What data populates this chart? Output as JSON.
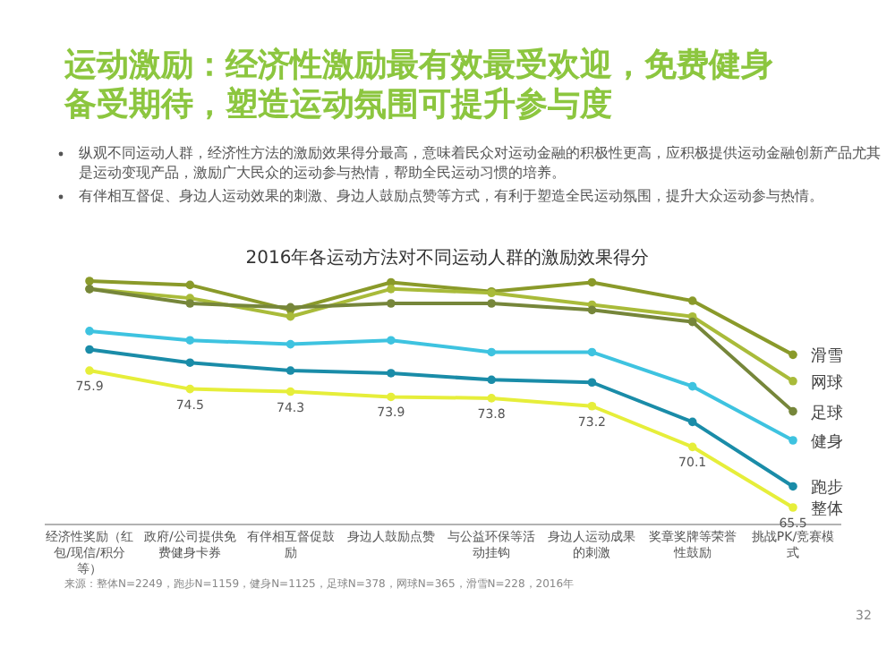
{
  "chart_data": {
    "type": "line",
    "title": "运动激励：经济性激励最有效最受欢迎，免费健身备受期待，塑造运动氛围可提升参与度",
    "subtitle": "2016年各运动方法对不同运动人群的激励效果得分",
    "annotations": [
      "纵观不同运动人群，经济性方法的激励效果得分最高，意味着民众对运动金融的积极性更高，应积极提供运动金融创新产品尤其是运动变现产品，激励广大民众的运动参与热情，帮助全民运动习惯的培养。",
      "有伴相互督促、身边人运动效果的刺激、身边人鼓励点赞等方式，有利于塑造全民运动氛围，提升大众运动参与热情。",
      "来源：整体N=2249，跑步N=1159，健身N=1125，足球N=378，网球N=365，滑雪N=228，2016年",
      "32"
    ],
    "categories": [
      "经济性奖励（红包/现信/积分等）",
      "政府/公司提供免费健身卡券",
      "有伴相互督促鼓励",
      "身边人鼓励点赞",
      "与公益环保等活动挂钩",
      "身边人运动成果的刺激",
      "奖章奖牌等荣誉性鼓励",
      "挑战PK/竞赛模式"
    ],
    "marker": "circle",
    "series": [
      {
        "name": "滑雪",
        "color": "#8a9a2a",
        "values": [
          82.7,
          82.4,
          80.5,
          82.6,
          81.9,
          82.6,
          81.2,
          77.1
        ]
      },
      {
        "name": "网球",
        "color": "#a9bb3a",
        "values": [
          82.1,
          81.4,
          80.0,
          82.1,
          81.8,
          80.9,
          80.0,
          75.1
        ]
      },
      {
        "name": "足球",
        "color": "#76863a",
        "values": [
          82.1,
          81.0,
          80.7,
          81.0,
          81.0,
          80.5,
          79.6,
          72.8
        ]
      },
      {
        "name": "健身",
        "color": "#3ec3e0",
        "values": [
          78.9,
          78.2,
          77.9,
          78.2,
          77.3,
          77.3,
          74.7,
          70.6
        ]
      },
      {
        "name": "跑步",
        "color": "#1a8ca8",
        "values": [
          77.5,
          76.5,
          75.9,
          75.7,
          75.2,
          75.0,
          72.0,
          67.1
        ]
      },
      {
        "name": "整体",
        "color": "#e6ee3a",
        "values": [
          75.9,
          74.5,
          74.3,
          73.9,
          73.8,
          73.2,
          70.1,
          65.5
        ],
        "value_labels": [
          "75.9",
          "74.5",
          "74.3",
          "73.9",
          "73.8",
          "73.2",
          "70.1",
          "65.5"
        ]
      }
    ]
  }
}
